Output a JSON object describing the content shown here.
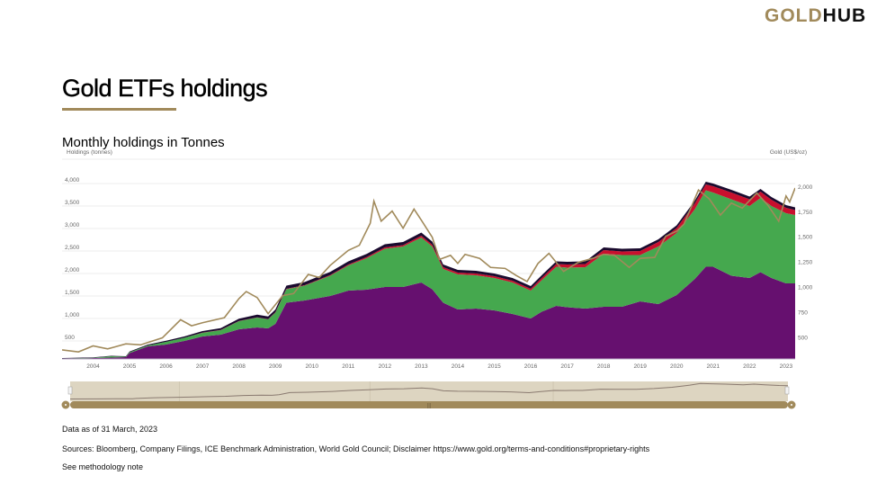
{
  "logo": {
    "part1": "GOLD",
    "part2": "HUB"
  },
  "page_title": "Gold ETFs holdings",
  "chart_subtitle": "Monthly holdings in Tonnes",
  "footer": {
    "data_as_of": "Data as of 31 March, 2023",
    "sources": "Sources: Bloomberg, Company Filings, ICE Benchmark Administration, World Gold Council; Disclaimer https://www.gold.org/terms-and-conditions#proprietary-rights",
    "methodology": "See methodology note"
  },
  "colors": {
    "purple": "#66106f",
    "green": "#45a84e",
    "red": "#c8102e",
    "dark": "#1a0a2e",
    "gold": "#a18a5b",
    "navigator_bg": "#ddd5c1"
  },
  "chart_data": {
    "type": "area",
    "stacked": true,
    "ylabel": "Holdings (tonnes)",
    "y2label": "Gold (US$/oz)",
    "ylim": [
      100,
      4080
    ],
    "y2lim": [
      290,
      2070
    ],
    "xlim": [
      2003.15,
      2023.25
    ],
    "grid": true,
    "y_ticks": [
      "500",
      "1,000",
      "1,500",
      "2,000",
      "2,500",
      "3,000",
      "3,500",
      "4,000"
    ],
    "y_tick_values": [
      500,
      1000,
      1500,
      2000,
      2500,
      3000,
      3500,
      4000
    ],
    "y2_ticks": [
      "500",
      "750",
      "1,000",
      "1,250",
      "1,500",
      "1,750",
      "2,000"
    ],
    "y2_tick_values": [
      500,
      750,
      1000,
      1250,
      1500,
      1750,
      2000
    ],
    "x_ticks": [
      "2004",
      "2005",
      "2006",
      "2007",
      "2008",
      "2009",
      "2010",
      "2011",
      "2012",
      "2013",
      "2014",
      "2015",
      "2016",
      "2017",
      "2018",
      "2019",
      "2020",
      "2021",
      "2022",
      "2023"
    ],
    "x": [
      2003.15,
      2004.0,
      2004.5,
      2004.9,
      2005.0,
      2005.5,
      2006.0,
      2006.5,
      2007.0,
      2007.5,
      2008.0,
      2008.5,
      2008.8,
      2009.0,
      2009.3,
      2009.8,
      2010.5,
      2011.0,
      2011.5,
      2012.0,
      2012.5,
      2013.0,
      2013.3,
      2013.6,
      2014.0,
      2014.5,
      2015.0,
      2015.5,
      2016.0,
      2016.3,
      2016.7,
      2017.0,
      2017.5,
      2018.0,
      2018.5,
      2019.0,
      2019.5,
      2020.0,
      2020.5,
      2020.8,
      2021.0,
      2021.5,
      2022.0,
      2022.3,
      2022.6,
      2023.0,
      2023.25
    ],
    "series": [
      {
        "color": "#66106f",
        "values": [
          110,
          120,
          130,
          140,
          230,
          380,
          420,
          500,
          600,
          640,
          760,
          800,
          780,
          880,
          1350,
          1400,
          1500,
          1620,
          1640,
          1700,
          1700,
          1800,
          1650,
          1350,
          1200,
          1220,
          1180,
          1100,
          1000,
          1150,
          1280,
          1250,
          1220,
          1260,
          1260,
          1380,
          1320,
          1520,
          1880,
          2150,
          2150,
          1950,
          1900,
          2030,
          1900,
          1780,
          1780
        ]
      },
      {
        "color": "#45a84e",
        "values": [
          0,
          5,
          30,
          10,
          20,
          20,
          60,
          70,
          80,
          100,
          180,
          220,
          200,
          250,
          300,
          330,
          450,
          560,
          700,
          850,
          900,
          1000,
          950,
          750,
          780,
          740,
          720,
          700,
          620,
          700,
          870,
          880,
          920,
          1180,
          1150,
          1030,
          1280,
          1380,
          1550,
          1700,
          1650,
          1700,
          1600,
          1650,
          1600,
          1560,
          1520
        ]
      },
      {
        "color": "#c8102e",
        "values": [
          0,
          0,
          0,
          0,
          0,
          0,
          0,
          0,
          5,
          5,
          5,
          5,
          5,
          10,
          10,
          10,
          15,
          20,
          25,
          30,
          30,
          40,
          40,
          40,
          40,
          40,
          40,
          40,
          40,
          50,
          60,
          70,
          70,
          80,
          80,
          90,
          100,
          110,
          130,
          130,
          140,
          150,
          150,
          140,
          140,
          120,
          110
        ]
      },
      {
        "color": "#1a0a2e",
        "values": [
          10,
          10,
          10,
          10,
          15,
          20,
          25,
          30,
          35,
          40,
          50,
          60,
          60,
          60,
          70,
          70,
          70,
          70,
          70,
          70,
          70,
          70,
          70,
          60,
          60,
          60,
          60,
          60,
          60,
          60,
          60,
          60,
          60,
          60,
          60,
          60,
          60,
          60,
          60,
          60,
          60,
          60,
          60,
          60,
          60,
          60,
          60
        ]
      }
    ],
    "gold_price": {
      "x": [
        2003.15,
        2003.6,
        2004.0,
        2004.4,
        2004.9,
        2005.3,
        2005.9,
        2006.4,
        2006.7,
        2007.0,
        2007.6,
        2008.0,
        2008.2,
        2008.5,
        2008.8,
        2009.2,
        2009.5,
        2009.9,
        2010.2,
        2010.5,
        2011.0,
        2011.3,
        2011.6,
        2011.7,
        2011.9,
        2012.2,
        2012.5,
        2012.8,
        2013.0,
        2013.3,
        2013.5,
        2013.8,
        2014.0,
        2014.2,
        2014.6,
        2014.9,
        2015.3,
        2015.6,
        2015.9,
        2016.2,
        2016.5,
        2016.9,
        2017.3,
        2017.7,
        2018.0,
        2018.3,
        2018.7,
        2019.0,
        2019.4,
        2019.7,
        2020.0,
        2020.2,
        2020.6,
        2020.9,
        2021.2,
        2021.5,
        2021.8,
        2022.2,
        2022.5,
        2022.8,
        2023.0,
        2023.1,
        2023.25
      ],
      "values": [
        380,
        360,
        420,
        390,
        440,
        430,
        500,
        680,
        620,
        650,
        700,
        890,
        960,
        900,
        740,
        920,
        940,
        1130,
        1100,
        1220,
        1370,
        1420,
        1640,
        1860,
        1660,
        1760,
        1590,
        1780,
        1670,
        1500,
        1280,
        1320,
        1240,
        1330,
        1290,
        1200,
        1190,
        1120,
        1060,
        1240,
        1340,
        1160,
        1250,
        1290,
        1330,
        1320,
        1200,
        1290,
        1300,
        1510,
        1560,
        1630,
        1970,
        1880,
        1720,
        1840,
        1790,
        1940,
        1820,
        1660,
        1910,
        1850,
        1990
      ]
    }
  }
}
